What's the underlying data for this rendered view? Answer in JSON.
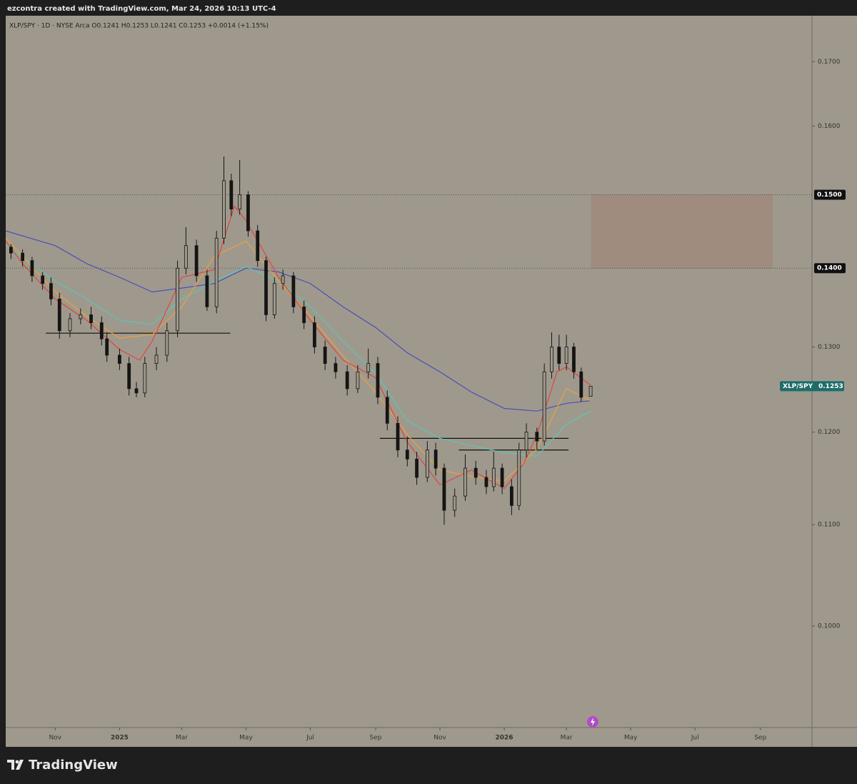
{
  "header": "ezcontra created with TradingView.com, Mar 24, 2026 10:13 UTC-4",
  "footer": "TradingView",
  "chart_data": {
    "type": "candlestick",
    "legend": "XLP/SPY · 1D · NYSE Arca  O0.1241 H0.1253 L0.1241 C0.1253 +0.0014 (+1.15%)",
    "log_scale": true,
    "color": "#151515",
    "xlim": [
      "2024-09-15",
      "2026-10-20"
    ],
    "xticks": [
      {
        "value": "2024-11-01",
        "label": "Nov"
      },
      {
        "value": "2025-01-01",
        "label": "2025"
      },
      {
        "value": "2025-03-01",
        "label": "Mar"
      },
      {
        "value": "2025-05-01",
        "label": "May"
      },
      {
        "value": "2025-07-01",
        "label": "Jul"
      },
      {
        "value": "2025-09-01",
        "label": "Sep"
      },
      {
        "value": "2025-11-01",
        "label": "Nov"
      },
      {
        "value": "2026-01-01",
        "label": "2026"
      },
      {
        "value": "2026-03-01",
        "label": "Mar"
      },
      {
        "value": "2026-05-01",
        "label": "May"
      },
      {
        "value": "2026-07-01",
        "label": "Jul"
      },
      {
        "value": "2026-09-01",
        "label": "Sep"
      }
    ],
    "ylim": [
      0.0909,
      0.1775
    ],
    "yticks": [
      {
        "value": 0.1,
        "label": "0.1000"
      },
      {
        "value": 0.11,
        "label": "0.1100"
      },
      {
        "value": 0.12,
        "label": "0.1200"
      },
      {
        "value": 0.13,
        "label": "0.1300"
      },
      {
        "value": 0.16,
        "label": "0.1600"
      },
      {
        "value": 0.17,
        "label": "0.1700"
      }
    ],
    "x": [
      "2024-09-20",
      "2024-10-01",
      "2024-10-10",
      "2024-10-20",
      "2024-10-28",
      "2024-11-05",
      "2024-11-15",
      "2024-11-25",
      "2024-12-05",
      "2024-12-15",
      "2024-12-20",
      "2025-01-01",
      "2025-01-10",
      "2025-01-17",
      "2025-01-25",
      "2025-02-05",
      "2025-02-15",
      "2025-02-25",
      "2025-03-05",
      "2025-03-15",
      "2025-03-25",
      "2025-04-03",
      "2025-04-10",
      "2025-04-17",
      "2025-04-25",
      "2025-05-03",
      "2025-05-12",
      "2025-05-20",
      "2025-05-28",
      "2025-06-05",
      "2025-06-15",
      "2025-06-25",
      "2025-07-05",
      "2025-07-15",
      "2025-07-25",
      "2025-08-05",
      "2025-08-15",
      "2025-08-25",
      "2025-09-03",
      "2025-09-12",
      "2025-09-22",
      "2025-10-01",
      "2025-10-10",
      "2025-10-20",
      "2025-10-28",
      "2025-11-05",
      "2025-11-15",
      "2025-11-25",
      "2025-12-05",
      "2025-12-15",
      "2025-12-22",
      "2025-12-30",
      "2026-01-08",
      "2026-01-15",
      "2026-01-22",
      "2026-02-01",
      "2026-02-08",
      "2026-02-15",
      "2026-02-22",
      "2026-03-01",
      "2026-03-08",
      "2026-03-15",
      "2026-03-24"
    ],
    "open": [
      0.1428,
      0.142,
      0.141,
      0.139,
      0.138,
      0.136,
      0.132,
      0.1335,
      0.134,
      0.133,
      0.131,
      0.129,
      0.128,
      0.125,
      0.1245,
      0.128,
      0.129,
      0.132,
      0.14,
      0.143,
      0.139,
      0.135,
      0.144,
      0.152,
      0.148,
      0.15,
      0.145,
      0.141,
      0.134,
      0.138,
      0.139,
      0.135,
      0.133,
      0.13,
      0.128,
      0.127,
      0.125,
      0.127,
      0.128,
      0.124,
      0.121,
      0.118,
      0.117,
      0.115,
      0.118,
      0.116,
      0.1115,
      0.113,
      0.116,
      0.115,
      0.114,
      0.116,
      0.114,
      0.112,
      0.118,
      0.12,
      0.119,
      0.127,
      0.13,
      0.128,
      0.13,
      0.127,
      0.1241
    ],
    "high": [
      0.1432,
      0.1425,
      0.1415,
      0.1395,
      0.1388,
      0.1368,
      0.1342,
      0.1348,
      0.135,
      0.1338,
      0.1318,
      0.1298,
      0.1288,
      0.1258,
      0.1288,
      0.13,
      0.133,
      0.141,
      0.1455,
      0.1438,
      0.1398,
      0.145,
      0.1555,
      0.153,
      0.155,
      0.1505,
      0.1458,
      0.1415,
      0.1388,
      0.1398,
      0.1395,
      0.1358,
      0.1338,
      0.1308,
      0.1288,
      0.1278,
      0.1278,
      0.1298,
      0.1288,
      0.1248,
      0.1218,
      0.1195,
      0.1178,
      0.119,
      0.1188,
      0.1165,
      0.1138,
      0.1175,
      0.1168,
      0.1158,
      0.1178,
      0.1165,
      0.1148,
      0.1188,
      0.121,
      0.1205,
      0.128,
      0.1318,
      0.1315,
      0.1315,
      0.1305,
      0.1275,
      0.1253
    ],
    "low": [
      0.1412,
      0.1402,
      0.1382,
      0.1372,
      0.1352,
      0.131,
      0.1312,
      0.1328,
      0.1322,
      0.1302,
      0.1282,
      0.1272,
      0.1242,
      0.124,
      0.124,
      0.1272,
      0.1282,
      0.1312,
      0.1392,
      0.1382,
      0.1345,
      0.1342,
      0.1432,
      0.147,
      0.1472,
      0.1442,
      0.1402,
      0.1332,
      0.1335,
      0.1372,
      0.1342,
      0.1322,
      0.1292,
      0.1272,
      0.1262,
      0.1242,
      0.1245,
      0.1262,
      0.1232,
      0.1202,
      0.1172,
      0.1162,
      0.1142,
      0.1145,
      0.1152,
      0.11,
      0.1108,
      0.1125,
      0.1142,
      0.1132,
      0.1135,
      0.1132,
      0.111,
      0.1115,
      0.1172,
      0.118,
      0.1185,
      0.1262,
      0.1272,
      0.1272,
      0.1262,
      0.1235,
      0.1241
    ],
    "close": [
      0.142,
      0.141,
      0.139,
      0.138,
      0.136,
      0.132,
      0.1335,
      0.134,
      0.133,
      0.131,
      0.129,
      0.128,
      0.125,
      0.1245,
      0.128,
      0.129,
      0.132,
      0.14,
      0.143,
      0.139,
      0.135,
      0.144,
      0.152,
      0.148,
      0.15,
      0.145,
      0.141,
      0.134,
      0.138,
      0.139,
      0.135,
      0.133,
      0.13,
      0.128,
      0.127,
      0.125,
      0.127,
      0.128,
      0.124,
      0.121,
      0.118,
      0.117,
      0.115,
      0.118,
      0.116,
      0.1115,
      0.113,
      0.116,
      0.115,
      0.114,
      0.116,
      0.114,
      0.112,
      0.118,
      0.12,
      0.119,
      0.127,
      0.13,
      0.128,
      0.13,
      0.127,
      0.124,
      0.1253
    ],
    "lines": [
      {
        "color": "#4a4fb8",
        "x": [
          "2024-09-15",
          "2024-11-01",
          "2024-12-01",
          "2025-01-01",
          "2025-02-01",
          "2025-03-01",
          "2025-04-01",
          "2025-05-01",
          "2025-06-01",
          "2025-07-01",
          "2025-08-01",
          "2025-09-01",
          "2025-10-01",
          "2025-11-01",
          "2025-12-01",
          "2026-01-01",
          "2026-02-01",
          "2026-03-01",
          "2026-03-24"
        ],
        "values": [
          0.145,
          0.143,
          0.1406,
          0.1388,
          0.1369,
          0.1374,
          0.138,
          0.14,
          0.1395,
          0.138,
          0.135,
          0.1324,
          0.1293,
          0.127,
          0.1246,
          0.1227,
          0.1224,
          0.1233,
          0.1236
        ]
      },
      {
        "color": "#58c7b8",
        "x": [
          "2024-09-15",
          "2024-11-01",
          "2024-12-01",
          "2025-01-01",
          "2025-02-01",
          "2025-03-01",
          "2025-04-01",
          "2025-05-01",
          "2025-06-01",
          "2025-07-01",
          "2025-08-01",
          "2025-09-01",
          "2025-10-01",
          "2025-11-01",
          "2025-12-01",
          "2026-01-01",
          "2026-02-01",
          "2026-03-01",
          "2026-03-24"
        ],
        "values": [
          0.1431,
          0.1383,
          0.136,
          0.1333,
          0.1328,
          0.136,
          0.1383,
          0.1402,
          0.1383,
          0.135,
          0.1307,
          0.1268,
          0.1213,
          0.1193,
          0.1185,
          0.1177,
          0.1173,
          0.1209,
          0.1224
        ]
      },
      {
        "color": "#e9a23a",
        "x": [
          "2024-09-15",
          "2024-11-01",
          "2024-12-01",
          "2025-01-01",
          "2025-02-01",
          "2025-03-01",
          "2025-04-01",
          "2025-05-01",
          "2025-06-01",
          "2025-07-01",
          "2025-08-01",
          "2025-09-01",
          "2025-10-01",
          "2025-11-01",
          "2025-12-01",
          "2026-01-01",
          "2026-02-01",
          "2026-03-01",
          "2026-03-24"
        ],
        "values": [
          0.144,
          0.1369,
          0.1338,
          0.1311,
          0.1315,
          0.135,
          0.1416,
          0.1436,
          0.1383,
          0.1338,
          0.1289,
          0.1246,
          0.1197,
          0.1158,
          0.1151,
          0.1146,
          0.1181,
          0.125,
          0.1236
        ]
      },
      {
        "color": "#e0453f",
        "x": [
          "2024-09-15",
          "2024-10-01",
          "2024-11-01",
          "2024-12-01",
          "2025-01-01",
          "2025-01-20",
          "2025-02-01",
          "2025-03-01",
          "2025-04-01",
          "2025-04-20",
          "2025-05-01",
          "2025-06-01",
          "2025-07-01",
          "2025-08-01",
          "2025-09-01",
          "2025-10-01",
          "2025-11-01",
          "2025-12-01",
          "2026-01-01",
          "2026-01-20",
          "2026-02-01",
          "2026-02-20",
          "2026-03-01",
          "2026-03-24"
        ],
        "values": [
          0.1436,
          0.1406,
          0.136,
          0.1333,
          0.1297,
          0.1284,
          0.1307,
          0.1388,
          0.1398,
          0.1484,
          0.1464,
          0.1388,
          0.1333,
          0.1284,
          0.1263,
          0.1189,
          0.1142,
          0.1158,
          0.1138,
          0.1166,
          0.1197,
          0.127,
          0.1276,
          0.1254
        ]
      }
    ],
    "levels": [
      {
        "value": 0.15,
        "label": "0.1500"
      },
      {
        "value": 0.14,
        "label": "0.1400"
      }
    ],
    "zone": {
      "x": [
        "2026-03-25",
        "2026-09-12"
      ],
      "y": [
        0.14,
        0.15
      ],
      "color": "#a08a7c"
    },
    "trend_lines": [
      {
        "x": [
          "2024-10-23",
          "2025-04-16"
        ],
        "value": 0.1317
      },
      {
        "x": [
          "2025-09-05",
          "2026-03-03"
        ],
        "value": 0.1193
      },
      {
        "x": [
          "2025-11-19",
          "2026-03-03"
        ],
        "value": 0.118
      }
    ],
    "last_price": {
      "name": "XLP/SPY",
      "value": 0.1253,
      "label": "0.1253",
      "color": "#1d6d6a"
    }
  }
}
